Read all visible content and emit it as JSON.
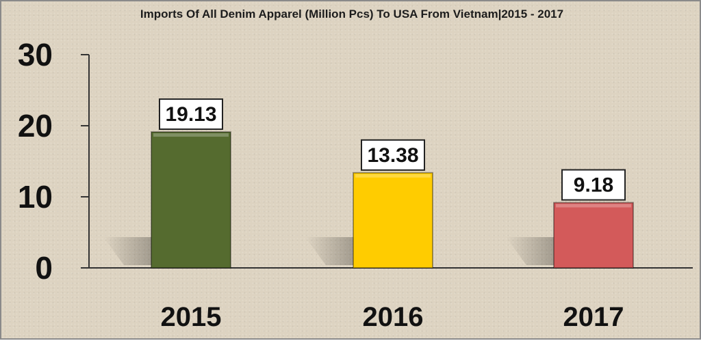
{
  "chart_data": {
    "type": "bar",
    "title": "Imports Of All Denim Apparel (Million Pcs) To USA From Vietnam|2015 - 2017",
    "categories": [
      "2015",
      "2016",
      "2017"
    ],
    "values": [
      19.13,
      13.38,
      9.18
    ],
    "value_labels": [
      "19.13",
      "13.38",
      "9.18"
    ],
    "colors": [
      "#556b2f",
      "#ffcc00",
      "#d35a5a"
    ],
    "ylim": [
      0,
      30
    ],
    "yticks": [
      0,
      10,
      20,
      30
    ],
    "xlabel": "",
    "ylabel": "",
    "grid": false,
    "legend": "none"
  }
}
